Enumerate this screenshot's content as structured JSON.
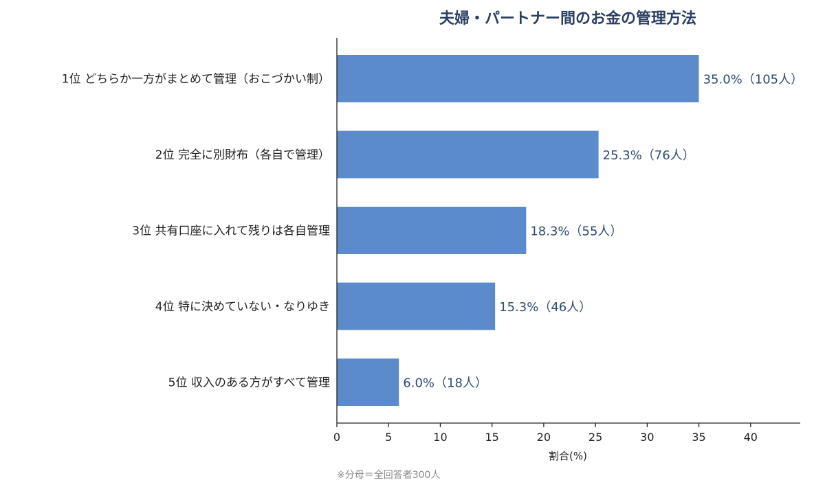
{
  "chart_data": {
    "type": "bar",
    "orientation": "horizontal",
    "title": "夫婦・パートナー間のお金の管理方法",
    "categories": [
      "1位 どちらか一方がまとめて管理（おこづかい制）",
      "2位 完全に別財布（各自で管理）",
      "3位 共有口座に入れて残りは各自管理",
      "4位 特に決めていない・なりゆき",
      "5位 収入のある方がすべて管理"
    ],
    "values": [
      35.0,
      25.3,
      18.3,
      15.3,
      6.0
    ],
    "data_labels": [
      "35.0%（105人）",
      "25.3%（76人）",
      "18.3%（55人）",
      "15.3%（46人）",
      "6.0%（18人）"
    ],
    "xlabel": "割合(%)",
    "xlim": [
      0,
      44.8
    ],
    "xticks": [
      "0",
      "5",
      "10",
      "15",
      "20",
      "25",
      "30",
      "35",
      "40"
    ],
    "grid": false,
    "bar_color": "#5b8bcb"
  },
  "footnote": "※分母＝全回答者300人"
}
